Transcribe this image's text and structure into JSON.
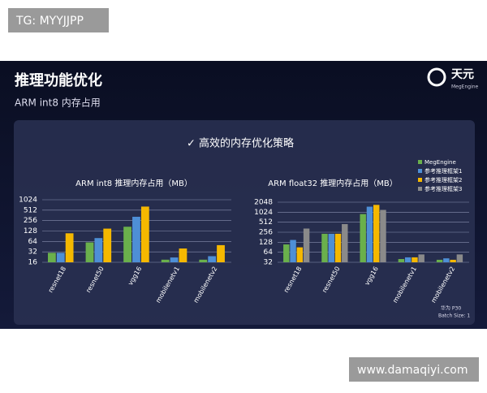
{
  "watermark_top": "TG: MYYJJPP",
  "watermark_bottom": "www.damaqiyi.com",
  "slide": {
    "title": "推理功能优化",
    "subtitle": "ARM int8 内存占用",
    "logo_text": "天元",
    "logo_sub": "MegEngine",
    "panel_heading": "高效的内存优化策略",
    "device": "华为 P30",
    "batch": "Batch Size: 1"
  },
  "chart_data": [
    {
      "type": "bar",
      "title": "ARM int8 推理内存占用（MB）",
      "yscale": "log",
      "grid": true,
      "categories": [
        "resnet18",
        "resnet50",
        "vgg16",
        "mobilenetv1",
        "mobilenetv2"
      ],
      "ylim": [
        16,
        1024
      ],
      "yticks": [
        16,
        32,
        64,
        128,
        256,
        512,
        1024
      ],
      "series": [
        {
          "color": "#6ab04c",
          "values": [
            30,
            60,
            170,
            19,
            19
          ]
        },
        {
          "color": "#4e8fd6",
          "values": [
            30,
            80,
            330,
            22,
            24
          ]
        },
        {
          "color": "#f5b800",
          "values": [
            110,
            150,
            650,
            40,
            50
          ]
        }
      ]
    },
    {
      "type": "bar",
      "title": "ARM float32 推理内存占用（MB）",
      "yscale": "log",
      "grid": true,
      "legend": "top-right",
      "categories": [
        "resnet18",
        "resnet50",
        "vgg16",
        "mobilenetv1",
        "mobilenetv2"
      ],
      "ylim": [
        32,
        2048
      ],
      "yticks": [
        32,
        64,
        128,
        256,
        512,
        1024,
        2048
      ],
      "series": [
        {
          "name": "MegEngine",
          "color": "#6ab04c",
          "values": [
            110,
            230,
            900,
            40,
            38
          ]
        },
        {
          "name": "参考推理框架1",
          "color": "#4e8fd6",
          "values": [
            150,
            230,
            1500,
            45,
            42
          ]
        },
        {
          "name": "参考推理框架2",
          "color": "#f5b800",
          "values": [
            90,
            230,
            1700,
            45,
            38
          ]
        },
        {
          "name": "参考推理框架3",
          "color": "#8a8a8a",
          "values": [
            330,
            450,
            1200,
            55,
            55
          ]
        }
      ]
    }
  ]
}
